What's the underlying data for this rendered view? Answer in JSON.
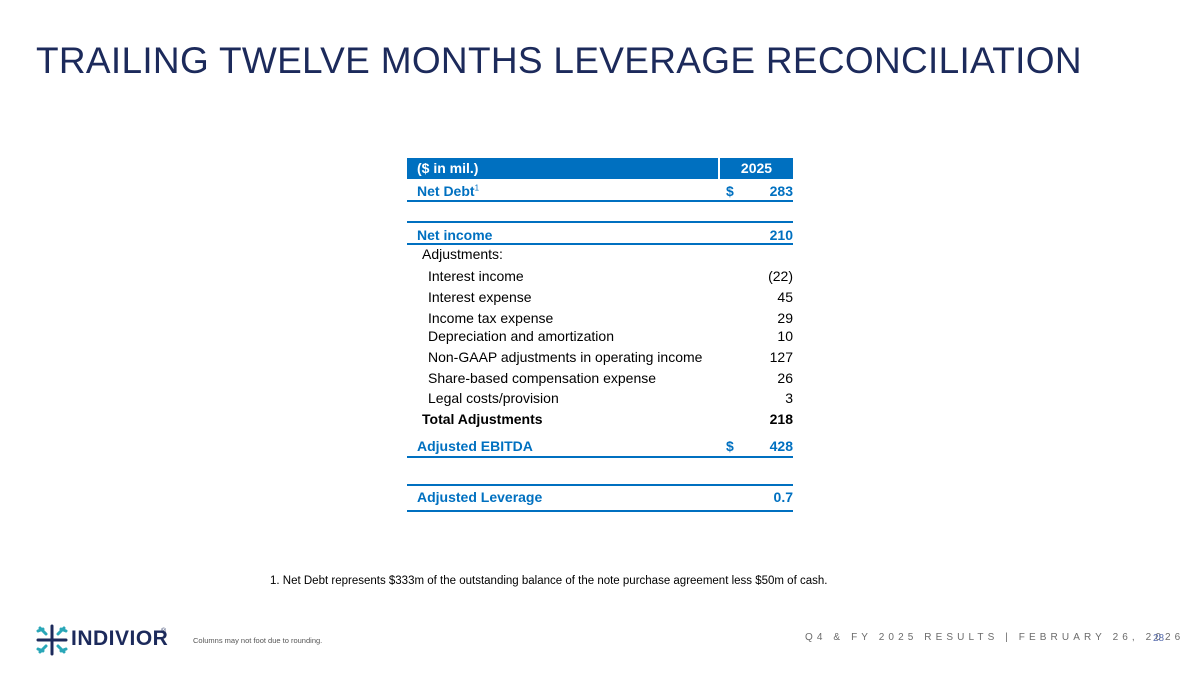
{
  "title": "TRAILING TWELVE MONTHS LEVERAGE RECONCILIATION",
  "table": {
    "header_label": "($ in mil.)",
    "header_year": "2025",
    "net_debt": {
      "label": "Net Debt",
      "footnote_marker": "1",
      "currency": "$",
      "value": "283"
    },
    "net_income": {
      "label": "Net income",
      "value": "210"
    },
    "adjustments_label": "Adjustments:",
    "adjustments": [
      {
        "label": "Interest income",
        "value": "(22)"
      },
      {
        "label": "Interest expense",
        "value": "45"
      },
      {
        "label": "Income tax expense",
        "value": "29"
      },
      {
        "label": "Depreciation and amortization",
        "value": "10"
      },
      {
        "label": "Non-GAAP adjustments in operating income",
        "value": "127"
      },
      {
        "label": "Share-based compensation expense",
        "value": "26"
      },
      {
        "label": "Legal costs/provision",
        "value": "3"
      }
    ],
    "total_adjustments": {
      "label": "Total Adjustments",
      "value": "218"
    },
    "adjusted_ebitda": {
      "label": "Adjusted EBITDA",
      "currency": "$",
      "value": "428"
    },
    "adjusted_leverage": {
      "label": "Adjusted Leverage",
      "value": "0.7"
    }
  },
  "footnote": "1. Net Debt represents $333m of the outstanding balance of the note purchase agreement less $50m of cash.",
  "footer": {
    "logo_text": "INDIVIOR",
    "logo_reg": "®",
    "rounding_note": "Columns may not foot due to rounding.",
    "confidential": "Q4 & FY 2025 RESULTS | FEBRUARY 26, 2026",
    "page_number": "28"
  },
  "colors": {
    "title": "#1c2a5b",
    "accent": "#0070c0",
    "logo_teal": "#2aa7b8"
  }
}
